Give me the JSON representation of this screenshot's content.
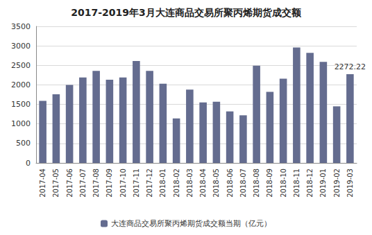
{
  "chart_data": {
    "type": "bar",
    "title": "2017-2019年3月大连商品交易所聚丙烯期货成交额",
    "categories": [
      "2017-04",
      "2017-05",
      "2017-06",
      "2017-07",
      "2017-08",
      "2017-09",
      "2017-10",
      "2017-11",
      "2017-12",
      "2018-01",
      "2018-02",
      "2018-03",
      "2018-04",
      "2018-05",
      "2018-06",
      "2018-07",
      "2018-08",
      "2018-09",
      "2018-10",
      "2018-11",
      "2018-12",
      "2019-01",
      "2019-02",
      "2019-03"
    ],
    "series": [
      {
        "name": "大连商品交易所聚丙烯期货成交额当期（亿元）",
        "color": "#646c8f",
        "values": [
          1590,
          1760,
          2000,
          2190,
          2360,
          2130,
          2190,
          2610,
          2360,
          2030,
          1140,
          1880,
          1550,
          1570,
          1320,
          1220,
          2490,
          1820,
          2160,
          2960,
          2820,
          2590,
          1450,
          2272.22
        ]
      }
    ],
    "annotations": [
      {
        "category": "2019-03",
        "text": "2272.22"
      }
    ],
    "ylim": [
      0,
      3500
    ],
    "yticks": [
      0,
      500,
      1000,
      1500,
      2000,
      2500,
      3000,
      3500
    ],
    "grid": true,
    "legend": "bottom"
  }
}
